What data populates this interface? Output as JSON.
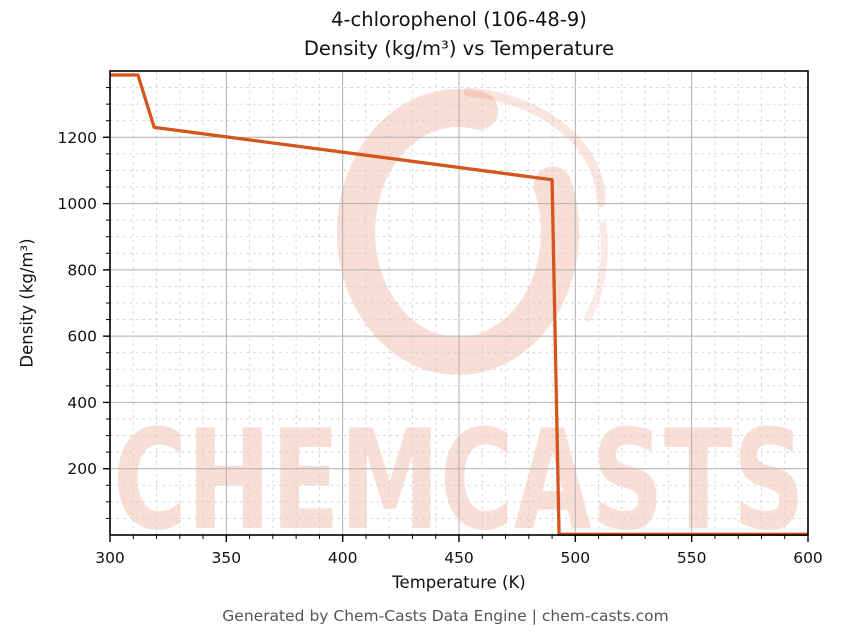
{
  "header": {
    "title": "4-chlorophenol (106-48-9)",
    "subtitle": "Density (kg/m³) vs Temperature"
  },
  "footer": {
    "text": "Generated by Chem-Casts Data Engine | chem-casts.com"
  },
  "watermark": {
    "brand": "CHEMCASTS",
    "logo": "c-ring-logo"
  },
  "colors": {
    "line": "#d4551e",
    "watermark": "#e05a33",
    "grid_major": "#b0b0b0",
    "grid_minor": "#d0d0d0",
    "axis": "#000000",
    "tick_label": "#111111",
    "footer_text": "#555555"
  },
  "chart_data": {
    "type": "line",
    "title": "4-chlorophenol (106-48-9)",
    "subtitle": "Density (kg/m³) vs Temperature",
    "xlabel": "Temperature (K)",
    "ylabel": "Density (kg/m³)",
    "xlim": [
      300,
      600
    ],
    "ylim": [
      0,
      1400
    ],
    "x_ticks": [
      300,
      350,
      400,
      450,
      500,
      550,
      600
    ],
    "y_ticks": [
      200,
      400,
      600,
      800,
      1000,
      1200
    ],
    "x_minor_step": 10,
    "y_minor_step": 50,
    "grid": true,
    "legend": false,
    "series": [
      {
        "name": "Density",
        "color": "#d4551e",
        "x": [
          300,
          312,
          319,
          490,
          493,
          600
        ],
        "y": [
          1388,
          1388,
          1230,
          1072,
          2,
          2
        ]
      }
    ]
  }
}
